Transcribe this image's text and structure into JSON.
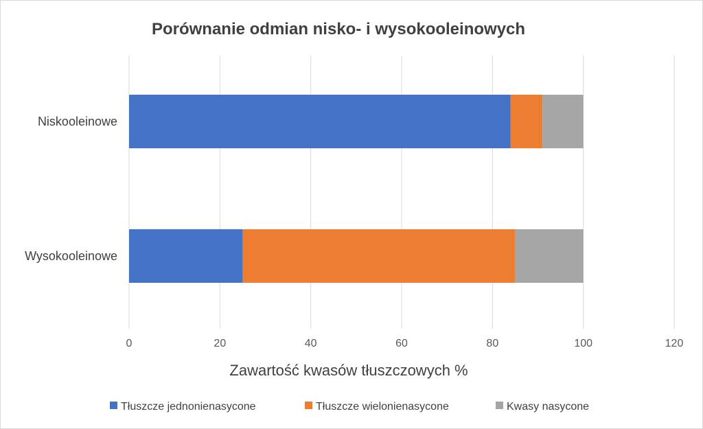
{
  "chart_data": {
    "type": "bar",
    "orientation": "horizontal",
    "stacked": true,
    "title": "Porównanie odmian nisko- i wysokooleinowych",
    "xlabel": "Zawartość kwasów tłuszczowych %",
    "ylabel": "",
    "categories": [
      "Niskooleinowe",
      "Wysokooleinowe"
    ],
    "series": [
      {
        "name": "Tłuszcze jednonienasycone",
        "color": "#4472c4",
        "values": [
          84,
          25
        ]
      },
      {
        "name": "Tłuszcze wielonienasycone",
        "color": "#ed7d31",
        "values": [
          7,
          60
        ]
      },
      {
        "name": "Kwasy nasycone",
        "color": "#a5a5a5",
        "values": [
          9,
          15
        ]
      }
    ],
    "xlim": [
      0,
      120
    ],
    "xticks": [
      "0",
      "20",
      "40",
      "60",
      "80",
      "100",
      "120"
    ],
    "grid": true,
    "legend_position": "bottom"
  }
}
